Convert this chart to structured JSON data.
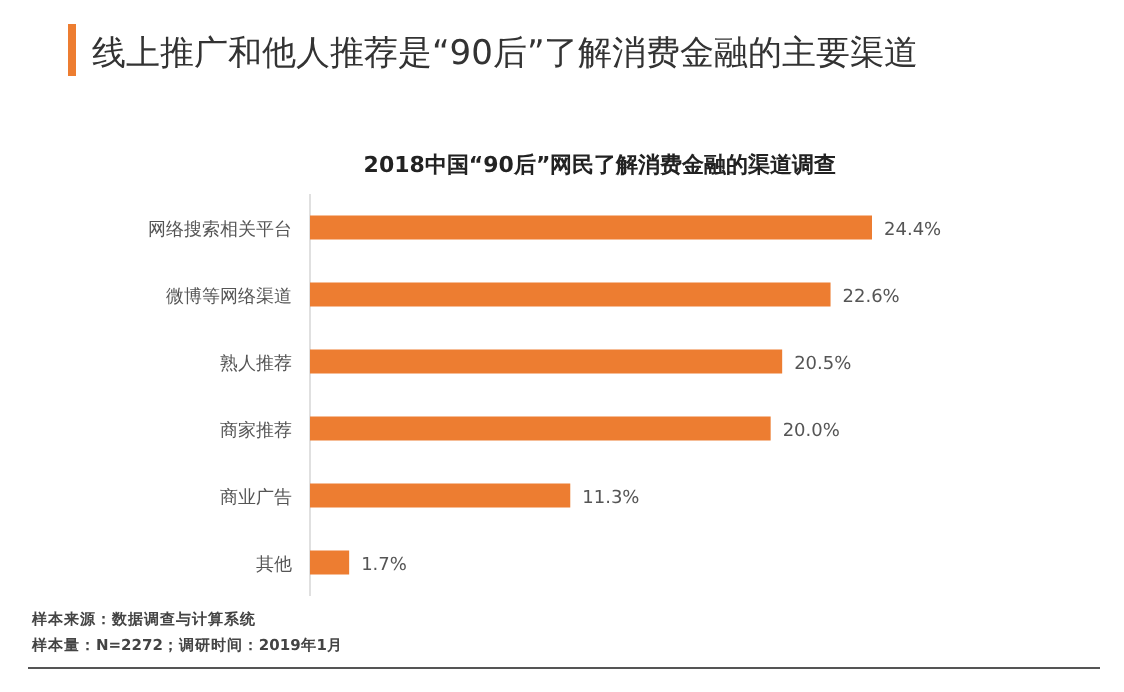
{
  "chart_data": {
    "type": "bar",
    "orientation": "horizontal",
    "title": "线上推广和他人推荐是“90后”了解消费金融的主要渠道",
    "subtitle": "2018中国“90后”网民了解消费金融的渠道调查",
    "categories": [
      "网络搜索相关平台",
      "微博等网络渠道",
      "熟人推荐",
      "商家推荐",
      "商业广告",
      "其他"
    ],
    "values": [
      24.4,
      22.6,
      20.5,
      20.0,
      11.3,
      1.7
    ],
    "value_labels": [
      "24.4%",
      "22.6%",
      "20.5%",
      "20.0%",
      "11.3%",
      "1.7%"
    ],
    "color": "#ed7d31",
    "grid": false,
    "annotations": [
      "样本来源：数据调查与计算系统",
      "样本量：N=2272；调研时间：2019年1月"
    ]
  }
}
